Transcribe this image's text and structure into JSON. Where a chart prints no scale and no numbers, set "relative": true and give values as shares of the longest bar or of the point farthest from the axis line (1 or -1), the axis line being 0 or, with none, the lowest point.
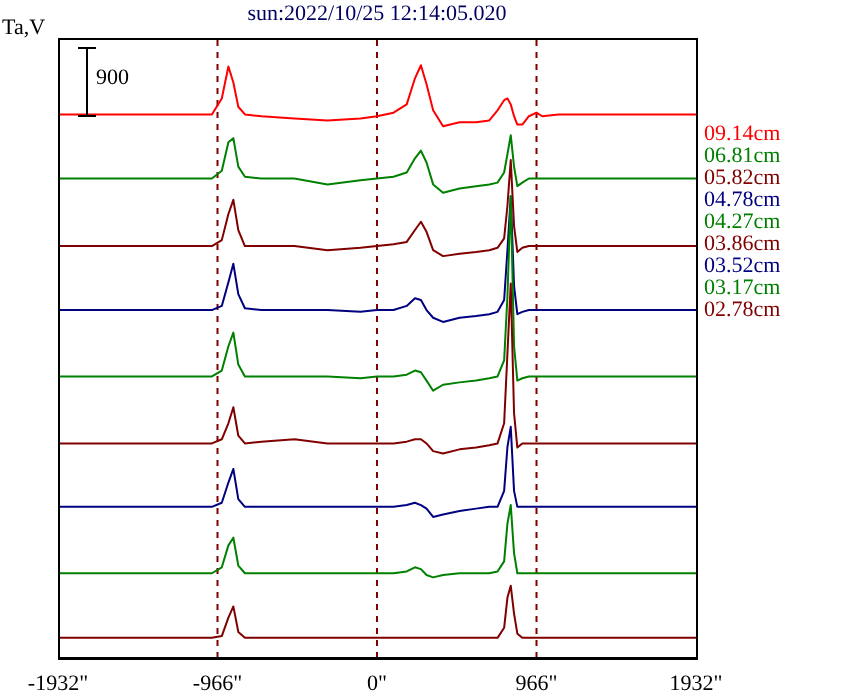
{
  "chart_data": {
    "type": "line",
    "title": "sun:2022/10/25 12:14:05.020",
    "ylabel": "Ta,V",
    "relative": true,
    "legend": "right",
    "annotations": [
      "900"
    ],
    "x": [
      -1932,
      -1500,
      -1200,
      -1000,
      -940,
      -900,
      -870,
      -840,
      -800,
      -700,
      -500,
      -300,
      -100,
      0,
      100,
      180,
      230,
      266,
      300,
      340,
      400,
      500,
      600,
      680,
      730,
      770,
      790,
      810,
      830,
      850,
      880,
      920,
      966,
      1000,
      1100,
      1300,
      1600,
      1932
    ],
    "xlim": [
      -1932,
      1932
    ],
    "xticks": [
      {
        "value": -1932,
        "label": "-1932\""
      },
      {
        "value": -966,
        "label": "-966\""
      },
      {
        "value": 0,
        "label": "0\""
      },
      {
        "value": 966,
        "label": "966\""
      },
      {
        "value": 1932,
        "label": "1932\""
      }
    ],
    "ref_lines": [
      {
        "axis": "x",
        "value": -966,
        "color": "#800000",
        "line_style": "dashed"
      },
      {
        "axis": "x",
        "value": 0,
        "color": "#800000",
        "line_style": "dashed"
      },
      {
        "axis": "x",
        "value": 966,
        "color": "#800000",
        "line_style": "dashed"
      }
    ],
    "series": [
      {
        "name": "09.14cm",
        "color": "#ff0000",
        "values": [
          0.917,
          0.917,
          0.917,
          0.917,
          0.944,
          0.998,
          0.971,
          0.93,
          0.917,
          0.914,
          0.91,
          0.907,
          0.91,
          0.914,
          0.92,
          0.934,
          0.978,
          1.0,
          0.968,
          0.924,
          0.897,
          0.904,
          0.904,
          0.907,
          0.924,
          0.941,
          0.944,
          0.934,
          0.914,
          0.9,
          0.9,
          0.914,
          0.92,
          0.914,
          0.917,
          0.917,
          0.917,
          0.917
        ]
      },
      {
        "name": "06.81cm",
        "color": "#008000",
        "values": [
          0.809,
          0.809,
          0.809,
          0.809,
          0.822,
          0.87,
          0.877,
          0.829,
          0.812,
          0.809,
          0.809,
          0.799,
          0.806,
          0.809,
          0.812,
          0.819,
          0.843,
          0.856,
          0.836,
          0.799,
          0.785,
          0.792,
          0.796,
          0.799,
          0.802,
          0.819,
          0.85,
          0.882,
          0.829,
          0.796,
          0.802,
          0.809,
          0.809,
          0.809,
          0.809,
          0.809,
          0.809,
          0.809
        ]
      },
      {
        "name": "05.82cm",
        "color": "#800000",
        "values": [
          0.695,
          0.695,
          0.695,
          0.695,
          0.705,
          0.749,
          0.773,
          0.722,
          0.695,
          0.695,
          0.695,
          0.688,
          0.692,
          0.695,
          0.698,
          0.702,
          0.722,
          0.736,
          0.719,
          0.688,
          0.678,
          0.682,
          0.685,
          0.688,
          0.692,
          0.708,
          0.763,
          0.84,
          0.729,
          0.685,
          0.692,
          0.695,
          0.695,
          0.695,
          0.695,
          0.695,
          0.695,
          0.695
        ]
      },
      {
        "name": "04.78cm",
        "color": "#000080",
        "values": [
          0.587,
          0.587,
          0.587,
          0.587,
          0.594,
          0.634,
          0.665,
          0.614,
          0.59,
          0.587,
          0.587,
          0.587,
          0.584,
          0.587,
          0.587,
          0.594,
          0.607,
          0.604,
          0.587,
          0.574,
          0.567,
          0.574,
          0.577,
          0.58,
          0.584,
          0.604,
          0.688,
          0.779,
          0.628,
          0.58,
          0.584,
          0.587,
          0.587,
          0.587,
          0.587,
          0.587,
          0.587,
          0.587
        ]
      },
      {
        "name": "04.27cm",
        "color": "#008000",
        "values": [
          0.475,
          0.475,
          0.475,
          0.475,
          0.485,
          0.526,
          0.549,
          0.495,
          0.475,
          0.475,
          0.475,
          0.475,
          0.472,
          0.475,
          0.475,
          0.478,
          0.485,
          0.482,
          0.468,
          0.451,
          0.461,
          0.465,
          0.468,
          0.472,
          0.475,
          0.502,
          0.61,
          0.779,
          0.526,
          0.468,
          0.472,
          0.475,
          0.475,
          0.475,
          0.475,
          0.475,
          0.475,
          0.475
        ]
      },
      {
        "name": "03.86cm",
        "color": "#800000",
        "values": [
          0.362,
          0.362,
          0.362,
          0.362,
          0.369,
          0.396,
          0.423,
          0.375,
          0.362,
          0.365,
          0.369,
          0.362,
          0.362,
          0.362,
          0.362,
          0.365,
          0.369,
          0.369,
          0.362,
          0.349,
          0.345,
          0.352,
          0.355,
          0.359,
          0.362,
          0.396,
          0.514,
          0.632,
          0.413,
          0.355,
          0.362,
          0.362,
          0.362,
          0.362,
          0.362,
          0.362,
          0.362,
          0.362
        ]
      },
      {
        "name": "03.52cm",
        "color": "#000080",
        "values": [
          0.255,
          0.255,
          0.255,
          0.255,
          0.262,
          0.296,
          0.319,
          0.268,
          0.255,
          0.255,
          0.255,
          0.255,
          0.255,
          0.255,
          0.255,
          0.258,
          0.262,
          0.258,
          0.252,
          0.238,
          0.242,
          0.248,
          0.252,
          0.255,
          0.255,
          0.282,
          0.356,
          0.39,
          0.282,
          0.255,
          0.255,
          0.255,
          0.255,
          0.255,
          0.255,
          0.255,
          0.255,
          0.255
        ]
      },
      {
        "name": "03.17cm",
        "color": "#008000",
        "values": [
          0.143,
          0.143,
          0.143,
          0.143,
          0.153,
          0.19,
          0.203,
          0.156,
          0.143,
          0.143,
          0.143,
          0.143,
          0.143,
          0.143,
          0.143,
          0.146,
          0.153,
          0.15,
          0.14,
          0.136,
          0.14,
          0.143,
          0.143,
          0.143,
          0.146,
          0.163,
          0.227,
          0.258,
          0.177,
          0.143,
          0.143,
          0.143,
          0.143,
          0.143,
          0.143,
          0.143,
          0.143,
          0.143
        ]
      },
      {
        "name": "02.78cm",
        "color": "#800000",
        "values": [
          0.034,
          0.034,
          0.034,
          0.034,
          0.037,
          0.068,
          0.087,
          0.044,
          0.034,
          0.034,
          0.034,
          0.034,
          0.034,
          0.034,
          0.034,
          0.034,
          0.034,
          0.034,
          0.034,
          0.034,
          0.034,
          0.034,
          0.034,
          0.034,
          0.034,
          0.051,
          0.102,
          0.122,
          0.075,
          0.041,
          0.034,
          0.034,
          0.034,
          0.034,
          0.034,
          0.034,
          0.034,
          0.034
        ]
      }
    ]
  }
}
